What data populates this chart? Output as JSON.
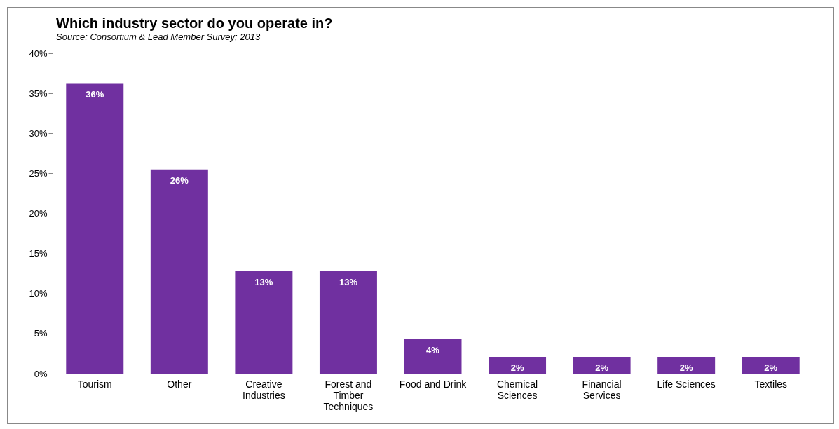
{
  "chart_data": {
    "type": "bar",
    "title": "Which industry sector do you operate in?",
    "subtitle": "Source: Consortium & Lead Member Survey; 2013",
    "categories": [
      "Tourism",
      "Other",
      "Creative Industries",
      "Forest and Timber Techniques",
      "Food and Drink",
      "Chemical Sciences",
      "Financial Services",
      "Life Sciences",
      "Textiles"
    ],
    "values": [
      36.2,
      25.5,
      12.8,
      12.8,
      4.3,
      2.1,
      2.1,
      2.1,
      2.1
    ],
    "value_labels": [
      "36%",
      "26%",
      "13%",
      "13%",
      "4%",
      "2%",
      "2%",
      "2%",
      "2%"
    ],
    "color": "#7030a0",
    "grid": false,
    "ylim": [
      0,
      40
    ],
    "yticks": [
      {
        "value": 0,
        "label": "0%"
      },
      {
        "value": 5,
        "label": "5%"
      },
      {
        "value": 10,
        "label": "10%"
      },
      {
        "value": 15,
        "label": "15%"
      },
      {
        "value": 20,
        "label": "20%"
      },
      {
        "value": 25,
        "label": "25%"
      },
      {
        "value": 30,
        "label": "30%"
      },
      {
        "value": 35,
        "label": "35%"
      },
      {
        "value": 40,
        "label": "40%"
      }
    ]
  }
}
